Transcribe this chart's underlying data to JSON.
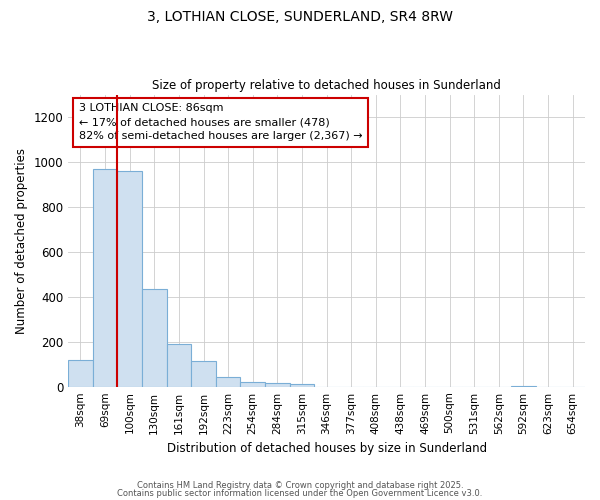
{
  "title1": "3, LOTHIAN CLOSE, SUNDERLAND, SR4 8RW",
  "title2": "Size of property relative to detached houses in Sunderland",
  "xlabel": "Distribution of detached houses by size in Sunderland",
  "ylabel": "Number of detached properties",
  "bins": [
    "38sqm",
    "69sqm",
    "100sqm",
    "130sqm",
    "161sqm",
    "192sqm",
    "223sqm",
    "254sqm",
    "284sqm",
    "315sqm",
    "346sqm",
    "377sqm",
    "408sqm",
    "438sqm",
    "469sqm",
    "500sqm",
    "531sqm",
    "562sqm",
    "592sqm",
    "623sqm",
    "654sqm"
  ],
  "values": [
    120,
    970,
    960,
    435,
    190,
    115,
    45,
    20,
    15,
    10,
    0,
    0,
    0,
    0,
    0,
    0,
    0,
    0,
    5,
    0,
    0
  ],
  "bar_color": "#cfe0f0",
  "bar_edgecolor": "#7aaed6",
  "annotation_text": "3 LOTHIAN CLOSE: 86sqm\n← 17% of detached houses are smaller (478)\n82% of semi-detached houses are larger (2,367) →",
  "vline_color": "#cc0000",
  "annotation_box_edgecolor": "#cc0000",
  "ylim": [
    0,
    1300
  ],
  "yticks": [
    0,
    200,
    400,
    600,
    800,
    1000,
    1200
  ],
  "bg_color": "#ffffff",
  "fig_bg_color": "#ffffff",
  "footer1": "Contains HM Land Registry data © Crown copyright and database right 2025.",
  "footer2": "Contains public sector information licensed under the Open Government Licence v3.0."
}
